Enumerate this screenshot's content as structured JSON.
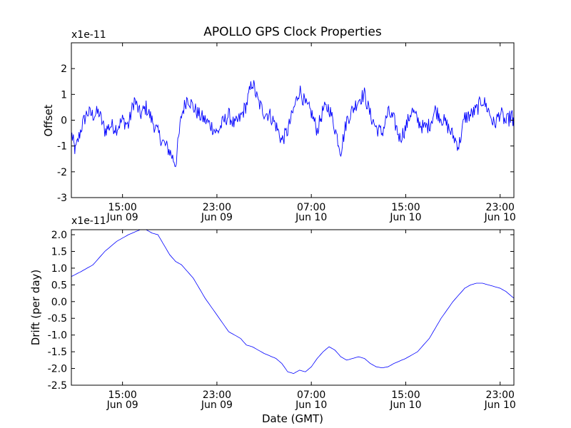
{
  "figure": {
    "title": "APOLLO GPS Clock Properties"
  },
  "chart_data": [
    {
      "type": "line",
      "title": "APOLLO GPS Clock Properties",
      "ylabel": "Offset",
      "xlabel": "",
      "y_multiplier": "x1e-11",
      "color": "#0000ff",
      "xlim": [
        "Jun 09 10:40",
        "Jun 11 00:10"
      ],
      "ylim": [
        -3,
        3
      ],
      "x_ticks": [
        {
          "time": "Jun 09 15:00",
          "label1": "15:00",
          "label2": "Jun 09"
        },
        {
          "time": "Jun 09 23:00",
          "label1": "23:00",
          "label2": "Jun 09"
        },
        {
          "time": "Jun 10 07:00",
          "label1": "07:00",
          "label2": "Jun 10"
        },
        {
          "time": "Jun 10 15:00",
          "label1": "15:00",
          "label2": "Jun 10"
        },
        {
          "time": "Jun 10 23:00",
          "label1": "23:00",
          "label2": "Jun 10"
        }
      ],
      "y_ticks": [
        {
          "value": -3,
          "label": "-3"
        },
        {
          "value": -2,
          "label": "-2"
        },
        {
          "value": -1,
          "label": "-1"
        },
        {
          "value": 0,
          "label": "0"
        },
        {
          "value": 1,
          "label": "1"
        },
        {
          "value": 2,
          "label": "2"
        }
      ],
      "series": [
        {
          "x": [
            "Jun 09 10:40",
            "Jun 09 11:00",
            "Jun 09 11:30",
            "Jun 09 12:00",
            "Jun 09 12:30",
            "Jun 09 13:00",
            "Jun 09 13:30",
            "Jun 09 14:00",
            "Jun 09 14:30",
            "Jun 09 15:00",
            "Jun 09 15:30",
            "Jun 09 16:00",
            "Jun 09 16:30",
            "Jun 09 17:00",
            "Jun 09 17:30",
            "Jun 09 18:00",
            "Jun 09 18:30",
            "Jun 09 19:00",
            "Jun 09 19:30",
            "Jun 09 20:00",
            "Jun 09 20:30",
            "Jun 09 21:00",
            "Jun 09 21:30",
            "Jun 09 22:00",
            "Jun 09 22:30",
            "Jun 09 23:00",
            "Jun 09 23:30",
            "Jun 10 00:00",
            "Jun 10 00:30",
            "Jun 10 01:00",
            "Jun 10 01:30",
            "Jun 10 02:00",
            "Jun 10 02:30",
            "Jun 10 03:00",
            "Jun 10 03:30",
            "Jun 10 04:00",
            "Jun 10 04:30",
            "Jun 10 05:00",
            "Jun 10 05:30",
            "Jun 10 06:00",
            "Jun 10 06:30",
            "Jun 10 07:00",
            "Jun 10 07:30",
            "Jun 10 08:00",
            "Jun 10 08:30",
            "Jun 10 09:00",
            "Jun 10 09:30",
            "Jun 10 10:00",
            "Jun 10 10:30",
            "Jun 10 11:00",
            "Jun 10 11:30",
            "Jun 10 12:00",
            "Jun 10 12:30",
            "Jun 10 13:00",
            "Jun 10 13:30",
            "Jun 10 14:00",
            "Jun 10 14:30",
            "Jun 10 15:00",
            "Jun 10 15:30",
            "Jun 10 16:00",
            "Jun 10 16:30",
            "Jun 10 17:00",
            "Jun 10 17:30",
            "Jun 10 18:00",
            "Jun 10 18:30",
            "Jun 10 19:00",
            "Jun 10 19:30",
            "Jun 10 20:00",
            "Jun 10 20:30",
            "Jun 10 21:00",
            "Jun 10 21:30",
            "Jun 10 22:00",
            "Jun 10 22:30",
            "Jun 10 23:00",
            "Jun 10 23:30",
            "Jun 11 00:00",
            "Jun 11 00:10"
          ],
          "values": [
            -0.5,
            -1.2,
            -0.3,
            0.3,
            0.2,
            0.3,
            -0.4,
            -0.2,
            -0.3,
            0.0,
            -0.2,
            0.8,
            0.2,
            0.5,
            0.0,
            -0.5,
            -0.9,
            -1.2,
            -1.7,
            0.2,
            0.9,
            0.5,
            0.2,
            0.0,
            -0.2,
            -0.5,
            -0.1,
            0.2,
            -0.2,
            0.1,
            0.6,
            1.5,
            0.7,
            0.3,
            0.2,
            -0.2,
            -0.8,
            -0.4,
            0.4,
            1.2,
            0.6,
            0.3,
            -0.4,
            0.4,
            0.5,
            -0.3,
            -1.2,
            0.0,
            0.4,
            0.8,
            1.0,
            0.2,
            -0.3,
            -0.5,
            0.3,
            0.0,
            -0.7,
            -0.3,
            0.4,
            0.0,
            -0.3,
            -0.2,
            0.4,
            0.1,
            -0.2,
            -0.6,
            -1.0,
            0.1,
            0.2,
            0.4,
            0.8,
            0.4,
            -0.2,
            0.3,
            -0.1,
            0.2,
            -0.4
          ]
        }
      ]
    },
    {
      "type": "line",
      "ylabel": "Drift (per day)",
      "xlabel": "Date (GMT)",
      "y_multiplier": "x1e-11",
      "color": "#0000ff",
      "xlim": [
        "Jun 09 10:40",
        "Jun 11 00:10"
      ],
      "ylim": [
        -2.5,
        2.15
      ],
      "x_ticks": [
        {
          "time": "Jun 09 15:00",
          "label1": "15:00",
          "label2": "Jun 09"
        },
        {
          "time": "Jun 09 23:00",
          "label1": "23:00",
          "label2": "Jun 09"
        },
        {
          "time": "Jun 10 07:00",
          "label1": "07:00",
          "label2": "Jun 10"
        },
        {
          "time": "Jun 10 15:00",
          "label1": "15:00",
          "label2": "Jun 10"
        },
        {
          "time": "Jun 10 23:00",
          "label1": "23:00",
          "label2": "Jun 10"
        }
      ],
      "y_ticks": [
        {
          "value": -2.5,
          "label": "-2.5"
        },
        {
          "value": -2.0,
          "label": "-2.0"
        },
        {
          "value": -1.5,
          "label": "-1.5"
        },
        {
          "value": -1.0,
          "label": "-1.0"
        },
        {
          "value": -0.5,
          "label": "-0.5"
        },
        {
          "value": 0.0,
          "label": "0.0"
        },
        {
          "value": 0.5,
          "label": "0.5"
        },
        {
          "value": 1.0,
          "label": "1.0"
        },
        {
          "value": 1.5,
          "label": "1.5"
        },
        {
          "value": 2.0,
          "label": "2.0"
        }
      ],
      "series": [
        {
          "x": [
            "Jun 09 10:40",
            "Jun 09 11:30",
            "Jun 09 12:30",
            "Jun 09 13:30",
            "Jun 09 14:30",
            "Jun 09 15:30",
            "Jun 09 16:30",
            "Jun 09 17:00",
            "Jun 09 17:30",
            "Jun 09 18:00",
            "Jun 09 18:30",
            "Jun 09 19:00",
            "Jun 09 19:30",
            "Jun 09 20:00",
            "Jun 09 21:00",
            "Jun 09 22:00",
            "Jun 09 23:00",
            "Jun 10 00:00",
            "Jun 10 01:00",
            "Jun 10 01:30",
            "Jun 10 02:00",
            "Jun 10 03:00",
            "Jun 10 04:00",
            "Jun 10 04:30",
            "Jun 10 05:00",
            "Jun 10 05:30",
            "Jun 10 06:00",
            "Jun 10 06:30",
            "Jun 10 07:00",
            "Jun 10 07:30",
            "Jun 10 08:00",
            "Jun 10 08:30",
            "Jun 10 09:00",
            "Jun 10 09:30",
            "Jun 10 10:00",
            "Jun 10 10:30",
            "Jun 10 11:00",
            "Jun 10 11:30",
            "Jun 10 12:00",
            "Jun 10 12:30",
            "Jun 10 13:00",
            "Jun 10 13:30",
            "Jun 10 14:00",
            "Jun 10 15:00",
            "Jun 10 16:00",
            "Jun 10 17:00",
            "Jun 10 18:00",
            "Jun 10 19:00",
            "Jun 10 20:00",
            "Jun 10 20:30",
            "Jun 10 21:00",
            "Jun 10 21:30",
            "Jun 10 22:00",
            "Jun 10 22:30",
            "Jun 10 23:00",
            "Jun 10 23:30",
            "Jun 11 00:10"
          ],
          "values": [
            0.75,
            0.9,
            1.1,
            1.5,
            1.8,
            2.0,
            2.15,
            2.15,
            2.05,
            2.0,
            1.7,
            1.4,
            1.2,
            1.1,
            0.7,
            0.1,
            -0.4,
            -0.9,
            -1.1,
            -1.3,
            -1.35,
            -1.55,
            -1.7,
            -1.85,
            -2.1,
            -2.15,
            -2.05,
            -2.1,
            -1.95,
            -1.7,
            -1.5,
            -1.35,
            -1.45,
            -1.65,
            -1.75,
            -1.7,
            -1.65,
            -1.7,
            -1.85,
            -1.95,
            -1.98,
            -1.95,
            -1.85,
            -1.7,
            -1.5,
            -1.1,
            -0.5,
            0.0,
            0.4,
            0.5,
            0.55,
            0.55,
            0.5,
            0.45,
            0.4,
            0.3,
            0.1
          ]
        }
      ]
    }
  ]
}
